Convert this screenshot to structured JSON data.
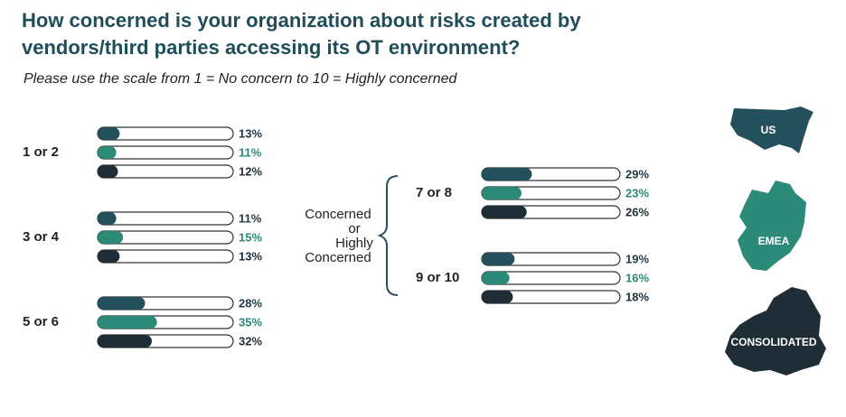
{
  "chart_data": {
    "type": "bar",
    "title": "How concerned is your organization about risks created by vendors/third parties accessing its OT environment?",
    "subtitle": "Please use the scale from 1 = No concern to 10 = Highly concerned",
    "annotation": [
      "Concerned",
      "or",
      "Highly",
      "Concerned"
    ],
    "categories": [
      "1 or 2",
      "3 or 4",
      "5 or 6",
      "7 or 8",
      "9 or 10"
    ],
    "xlim": [
      0,
      80
    ],
    "series": [
      {
        "name": "US",
        "color": "#24505c",
        "label_color": "#1f3a46",
        "values": [
          13,
          11,
          28,
          29,
          19
        ],
        "value_labels": [
          "13%",
          "11%",
          "28%",
          "29%",
          "19%"
        ]
      },
      {
        "name": "EMEA",
        "color": "#2b8a78",
        "label_color": "#2b8a78",
        "values": [
          11,
          15,
          35,
          23,
          16
        ],
        "value_labels": [
          "11%",
          "15%",
          "35%",
          "23%",
          "16%"
        ]
      },
      {
        "name": "CONSOLIDATED",
        "color": "#1f2e36",
        "label_color": "#1f2e36",
        "values": [
          12,
          13,
          32,
          26,
          18
        ],
        "value_labels": [
          "12%",
          "13%",
          "32%",
          "26%",
          "18%"
        ]
      }
    ]
  }
}
